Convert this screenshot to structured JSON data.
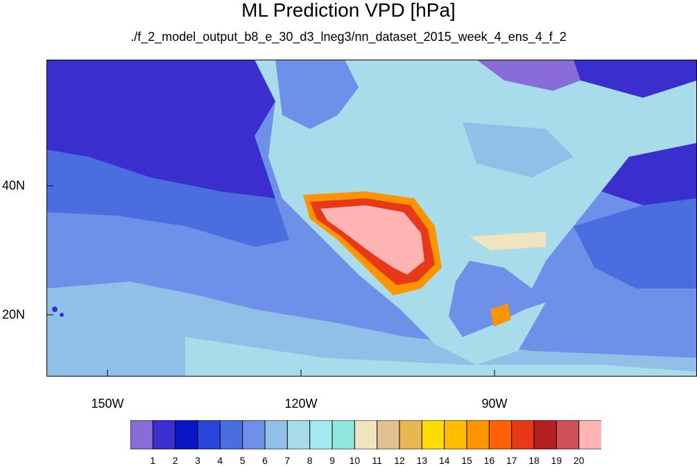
{
  "title": "ML Prediction VPD [hPa]",
  "subtitle": "./f_2_model_output_b8_e_30_d3_lneg3/nn_dataset_2015_week_4_ens_4_f_2",
  "map": {
    "lon_labels": [
      "150W",
      "120W",
      "90W"
    ],
    "lat_labels": [
      "40N",
      "20N"
    ],
    "ocean_color": "#4a6ee0",
    "land_color": "#a8dcea"
  },
  "colorbar": {
    "labels": [
      "1",
      "2",
      "3",
      "4",
      "5",
      "6",
      "7",
      "8",
      "9",
      "10",
      "11",
      "12",
      "13",
      "14",
      "15",
      "16",
      "17",
      "18",
      "19",
      "20"
    ],
    "colors": [
      "#8a6cd9",
      "#3a2ecf",
      "#0a14c8",
      "#2846de",
      "#4a6ee0",
      "#6e90e8",
      "#90c0e8",
      "#a8dcea",
      "#a4e8f0",
      "#90e8dc",
      "#f0e4c0",
      "#e0c090",
      "#e8b850",
      "#ffdc00",
      "#ffbc00",
      "#ff9400",
      "#ff6000",
      "#e83818",
      "#b42020",
      "#d05058",
      "#ffb4b4"
    ]
  }
}
